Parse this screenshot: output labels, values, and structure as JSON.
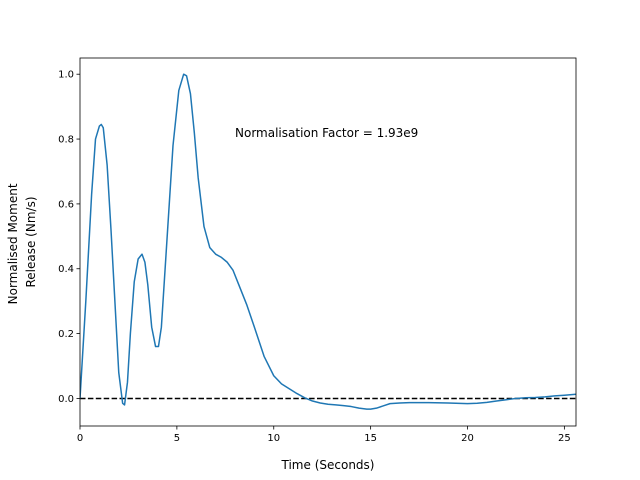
{
  "chart_data": {
    "type": "line",
    "title": "",
    "xlabel": "Time (Seconds)",
    "ylabel_lines": [
      "Normalised Moment",
      "Release (Nm/s)"
    ],
    "xlim": [
      0,
      25.6
    ],
    "ylim": [
      -0.085,
      1.05
    ],
    "xticks": [
      0,
      5,
      10,
      15,
      20,
      25
    ],
    "yticks": [
      0.0,
      0.2,
      0.4,
      0.6,
      0.8,
      1.0
    ],
    "ytick_labels": [
      "0.0",
      "0.2",
      "0.4",
      "0.6",
      "0.8",
      "1.0"
    ],
    "grid": false,
    "annotation": {
      "text": "Normalisation Factor = 1.93e9",
      "x": 8.0,
      "y": 0.8
    },
    "reference_line": {
      "y": 0.0,
      "style": "dashed",
      "color": "#000000"
    },
    "series": [
      {
        "color": "#1f77b4",
        "x": [
          0,
          0.3,
          0.6,
          0.8,
          1.0,
          1.1,
          1.2,
          1.4,
          1.6,
          1.8,
          2.0,
          2.2,
          2.3,
          2.45,
          2.6,
          2.8,
          3.0,
          3.2,
          3.35,
          3.5,
          3.7,
          3.9,
          4.05,
          4.2,
          4.5,
          4.8,
          5.1,
          5.35,
          5.5,
          5.7,
          5.9,
          6.1,
          6.4,
          6.7,
          7.0,
          7.3,
          7.6,
          7.9,
          8.2,
          8.6,
          9.0,
          9.5,
          10.0,
          10.4,
          10.8,
          11.2,
          11.6,
          12.0,
          12.4,
          12.8,
          13.2,
          13.6,
          14.0,
          14.4,
          14.8,
          15.0,
          15.3,
          15.7,
          16.0,
          16.5,
          17.0,
          18.0,
          19.0,
          20.0,
          20.5,
          21.0,
          21.5,
          22.0,
          22.5,
          23.0,
          23.5,
          24.0,
          24.5,
          25.0,
          25.6
        ],
        "y": [
          0.0,
          0.3,
          0.63,
          0.8,
          0.84,
          0.845,
          0.835,
          0.72,
          0.52,
          0.3,
          0.08,
          -0.015,
          -0.02,
          0.05,
          0.2,
          0.36,
          0.43,
          0.445,
          0.42,
          0.35,
          0.22,
          0.16,
          0.16,
          0.22,
          0.5,
          0.78,
          0.95,
          1.0,
          0.995,
          0.94,
          0.82,
          0.68,
          0.53,
          0.465,
          0.445,
          0.435,
          0.42,
          0.395,
          0.35,
          0.29,
          0.22,
          0.13,
          0.07,
          0.045,
          0.03,
          0.015,
          0.002,
          -0.008,
          -0.014,
          -0.018,
          -0.02,
          -0.022,
          -0.025,
          -0.03,
          -0.033,
          -0.033,
          -0.03,
          -0.022,
          -0.016,
          -0.014,
          -0.013,
          -0.013,
          -0.014,
          -0.016,
          -0.015,
          -0.012,
          -0.008,
          -0.004,
          0.0,
          0.002,
          0.003,
          0.005,
          0.008,
          0.01,
          0.013
        ]
      }
    ]
  }
}
